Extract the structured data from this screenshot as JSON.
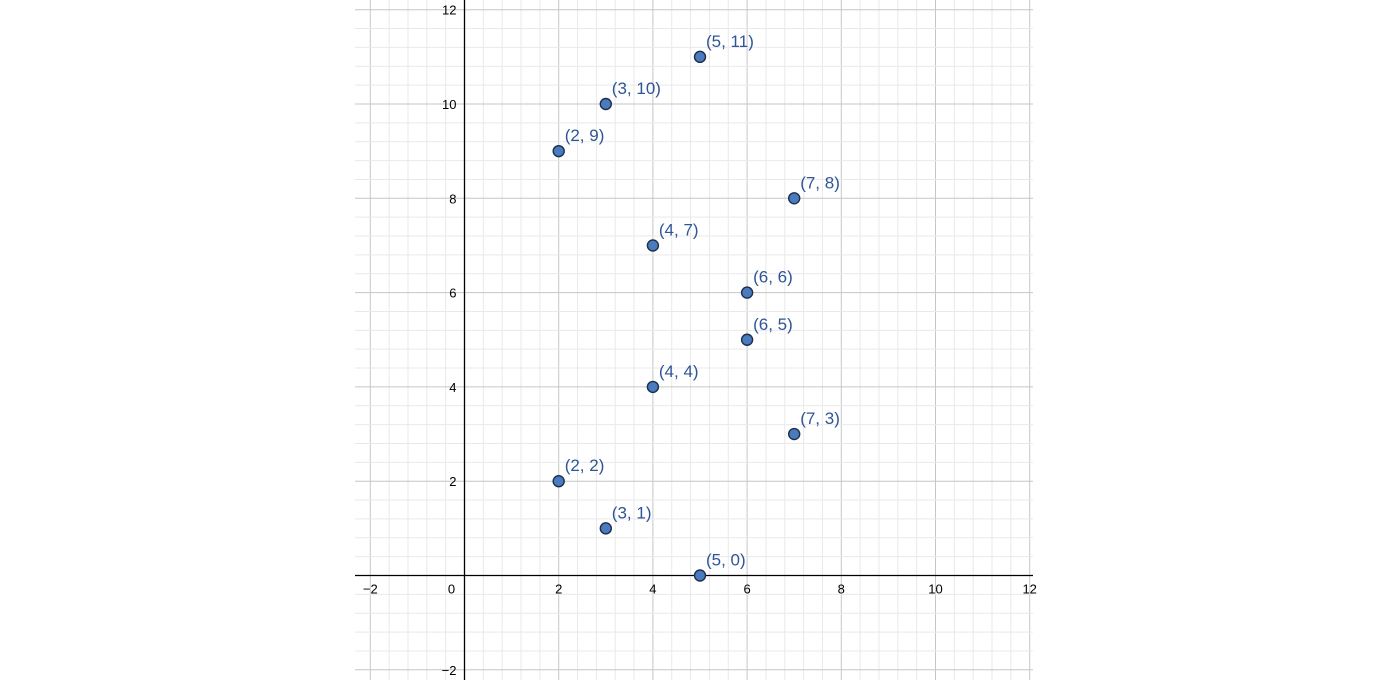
{
  "chart_data": {
    "type": "scatter",
    "title": "",
    "xlabel": "",
    "ylabel": "",
    "xlim": [
      -2.3,
      12
    ],
    "ylim": [
      -2.2,
      12.2
    ],
    "grid": true,
    "major_step": 2,
    "minor_step": 0.4,
    "x_ticks": [
      -2,
      0,
      2,
      4,
      6,
      8,
      10,
      12
    ],
    "x_tick_labels": [
      "−2",
      "0",
      "2",
      "4",
      "6",
      "8",
      "10",
      "12"
    ],
    "y_ticks": [
      -2,
      2,
      4,
      6,
      8,
      10,
      12
    ],
    "y_tick_labels": [
      "−2",
      "2",
      "4",
      "6",
      "8",
      "10",
      "12"
    ],
    "points": [
      {
        "x": 5,
        "y": 11,
        "label": "(5, 11)"
      },
      {
        "x": 3,
        "y": 10,
        "label": "(3, 10)"
      },
      {
        "x": 2,
        "y": 9,
        "label": "(2, 9)"
      },
      {
        "x": 7,
        "y": 8,
        "label": "(7, 8)"
      },
      {
        "x": 4,
        "y": 7,
        "label": "(4, 7)"
      },
      {
        "x": 6,
        "y": 6,
        "label": "(6, 6)"
      },
      {
        "x": 6,
        "y": 5,
        "label": "(6, 5)"
      },
      {
        "x": 4,
        "y": 4,
        "label": "(4, 4)"
      },
      {
        "x": 7,
        "y": 3,
        "label": "(7, 3)"
      },
      {
        "x": 2,
        "y": 2,
        "label": "(2, 2)"
      },
      {
        "x": 3,
        "y": 1,
        "label": "(3, 1)"
      },
      {
        "x": 5,
        "y": 0,
        "label": "(5, 0)"
      }
    ],
    "point_color": "#4a7bbf",
    "point_stroke": "#1c2f4a",
    "label_color": "#2f5597",
    "axis_color": "#000000"
  }
}
